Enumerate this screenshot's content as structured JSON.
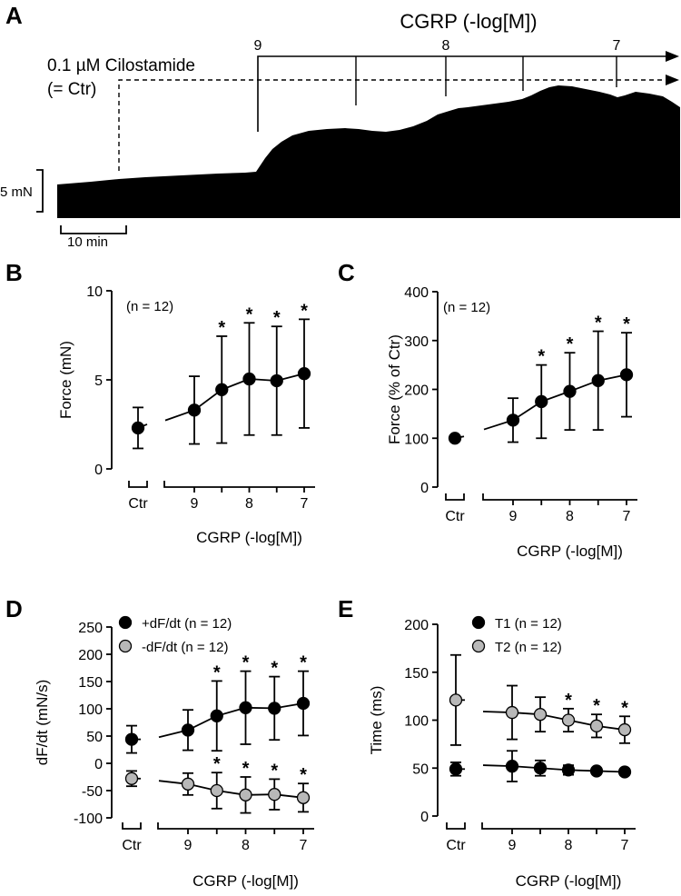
{
  "panels": {
    "A": "A",
    "B": "B",
    "C": "C",
    "D": "D",
    "E": "E"
  },
  "trace": {
    "drug_label": "CGRP (-log[M])",
    "ctr_label_1": "0.1 µM Cilostamide",
    "ctr_label_2": "(= Ctr)",
    "dose_ticks": [
      "9",
      "8",
      "7"
    ],
    "scale_force": "5 mN",
    "scale_time": "10 min"
  },
  "colors": {
    "black_marker": "#000000",
    "gray_marker": "#b8b8b8",
    "line": "#000000"
  },
  "chart_data": [
    {
      "id": "B",
      "type": "line",
      "ylabel": "Force (mN)",
      "xlabel": "CGRP (-log[M])",
      "ylim": [
        0,
        10
      ],
      "yticks": [
        0,
        5,
        10
      ],
      "categories": [
        "Ctr",
        "9",
        "8",
        "7"
      ],
      "x": [
        9.0,
        8.5,
        8.0,
        7.5,
        7.0
      ],
      "n_label": "(n = 12)",
      "series": [
        {
          "name": "Force",
          "marker": "black",
          "ctr": {
            "mean": 2.3,
            "err": 1.15
          },
          "values": [
            3.3,
            4.45,
            5.05,
            4.95,
            5.35
          ],
          "errors": [
            1.9,
            3.0,
            3.15,
            3.05,
            3.05
          ],
          "sig": [
            false,
            true,
            true,
            true,
            true
          ]
        }
      ]
    },
    {
      "id": "C",
      "type": "line",
      "ylabel": "Force (% of Ctr)",
      "xlabel": "CGRP (-log[M])",
      "ylim": [
        0,
        400
      ],
      "yticks": [
        0,
        100,
        200,
        300,
        400
      ],
      "categories": [
        "Ctr",
        "9",
        "8",
        "7"
      ],
      "x": [
        9.0,
        8.5,
        8.0,
        7.5,
        7.0
      ],
      "n_label": "(n = 12)",
      "series": [
        {
          "name": "Force",
          "marker": "black",
          "ctr": {
            "mean": 100,
            "err": 0
          },
          "values": [
            137,
            175,
            196,
            218,
            230
          ],
          "errors": [
            45,
            75,
            79,
            101,
            86
          ],
          "sig": [
            false,
            true,
            true,
            true,
            true
          ]
        }
      ]
    },
    {
      "id": "D",
      "type": "line",
      "ylabel": "dF/dt (mN/s)",
      "xlabel": "CGRP (-log[M])",
      "ylim": [
        -100,
        250
      ],
      "yticks": [
        -100,
        -50,
        0,
        50,
        100,
        150,
        200,
        250
      ],
      "categories": [
        "Ctr",
        "9",
        "8",
        "7"
      ],
      "x": [
        9.0,
        8.5,
        8.0,
        7.5,
        7.0
      ],
      "series": [
        {
          "name": "+dF/dt (n = 12)",
          "marker": "black",
          "ctr": {
            "mean": 44,
            "err": 25
          },
          "values": [
            61,
            87,
            102,
            101,
            110
          ],
          "errors": [
            37,
            64,
            67,
            58,
            59
          ],
          "sig": [
            false,
            true,
            true,
            true,
            true
          ]
        },
        {
          "name": "-dF/dt (n = 12)",
          "marker": "gray",
          "ctr": {
            "mean": -28,
            "err": 14
          },
          "values": [
            -38,
            -50,
            -58,
            -57,
            -63
          ],
          "errors": [
            20,
            33,
            33,
            28,
            26
          ],
          "sig": [
            false,
            true,
            true,
            true,
            true
          ]
        }
      ]
    },
    {
      "id": "E",
      "type": "line",
      "ylabel": "Time (ms)",
      "xlabel": "CGRP (-log[M])",
      "ylim": [
        0,
        200
      ],
      "yticks": [
        0,
        50,
        100,
        150,
        200
      ],
      "categories": [
        "Ctr",
        "9",
        "8",
        "7"
      ],
      "x": [
        9.0,
        8.5,
        8.0,
        7.5,
        7.0
      ],
      "series": [
        {
          "name": "T1 (n = 12)",
          "marker": "black",
          "ctr": {
            "mean": 49,
            "err": 7
          },
          "values": [
            52,
            50,
            48,
            47,
            46
          ],
          "errors": [
            16,
            8,
            5,
            3,
            3
          ],
          "sig": [
            false,
            false,
            false,
            false,
            false
          ]
        },
        {
          "name": "T2 (n = 12)",
          "marker": "gray",
          "ctr": {
            "mean": 121,
            "err": 47
          },
          "values": [
            108,
            106,
            100,
            94,
            90
          ],
          "errors": [
            28,
            18,
            12,
            12,
            14
          ],
          "sig": [
            false,
            false,
            true,
            true,
            true
          ]
        }
      ]
    }
  ]
}
